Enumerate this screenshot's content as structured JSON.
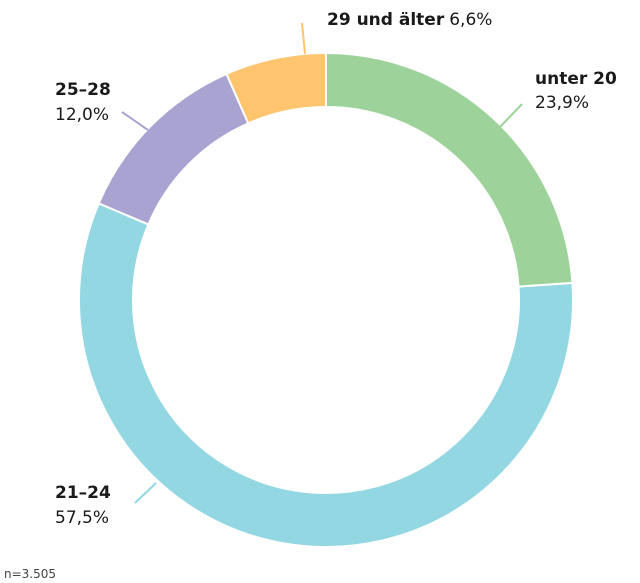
{
  "chart_data": {
    "type": "donut",
    "categories": [
      "unter 20",
      "21–24",
      "25–28",
      "29 und älter"
    ],
    "values": [
      23.9,
      57.5,
      12.0,
      6.6
    ],
    "value_labels": [
      "23,9%",
      "57,5%",
      "12,0%",
      "6,6%"
    ],
    "colors": [
      "#9dd39b",
      "#93d7e3",
      "#a8a3d1",
      "#fec46e"
    ],
    "note": "n=3.505"
  }
}
